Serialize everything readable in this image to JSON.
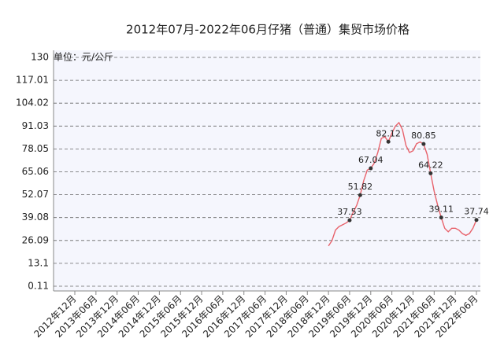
{
  "chart_data": {
    "type": "line",
    "title": "2012年07月-2022年06月仔猪（普通）集贸市场价格",
    "y_unit": "单位：元/公斤",
    "categories": [
      "2012年12月",
      null,
      null,
      null,
      null,
      null,
      "2013年06月",
      null,
      null,
      null,
      null,
      null,
      "2013年12月",
      null,
      null,
      null,
      null,
      null,
      "2014年06月",
      null,
      null,
      null,
      null,
      null,
      "2014年12月",
      null,
      null,
      null,
      null,
      null,
      "2015年06月",
      null,
      null,
      null,
      null,
      null,
      "2015年12月",
      null,
      null,
      null,
      null,
      null,
      "2016年06月",
      null,
      null,
      null,
      null,
      null,
      "2016年12月",
      null,
      null,
      null,
      null,
      null,
      "2017年06月",
      null,
      null,
      null,
      null,
      null,
      "2017年12月",
      null,
      null,
      null,
      null,
      null,
      "2018年06月",
      null,
      null,
      null,
      null,
      null,
      "2018年12月",
      null,
      null,
      null,
      null,
      null,
      "2019年06月",
      null,
      null,
      null,
      null,
      null,
      "2019年12月",
      null,
      null,
      null,
      null,
      null,
      "2020年06月",
      null,
      null,
      null,
      null,
      null,
      "2020年12月",
      null,
      null,
      null,
      null,
      null,
      "2021年06月",
      null,
      null,
      null,
      null,
      null,
      "2021年12月",
      null,
      null,
      null,
      null,
      null,
      "2022年06月"
    ],
    "series": [
      {
        "color": "#e8626b",
        "values": [
          null,
          null,
          null,
          null,
          null,
          null,
          null,
          null,
          null,
          null,
          null,
          null,
          null,
          null,
          null,
          null,
          null,
          null,
          null,
          null,
          null,
          null,
          null,
          null,
          null,
          null,
          null,
          null,
          null,
          null,
          null,
          null,
          null,
          null,
          null,
          null,
          null,
          null,
          null,
          null,
          null,
          null,
          null,
          null,
          null,
          null,
          null,
          null,
          null,
          null,
          null,
          null,
          null,
          null,
          null,
          null,
          null,
          null,
          null,
          null,
          null,
          null,
          null,
          null,
          null,
          null,
          null,
          null,
          null,
          null,
          null,
          null,
          23,
          26,
          32,
          34,
          35,
          36,
          37.53,
          42,
          46,
          51.82,
          60,
          66,
          67.04,
          70,
          76,
          84,
          85,
          82.12,
          87,
          91,
          93,
          89,
          80,
          76,
          77,
          81,
          82,
          80.85,
          75,
          64.22,
          54,
          46,
          39.11,
          33,
          31,
          33,
          33,
          32,
          30,
          29,
          30,
          33,
          37.74
        ]
      },
      {
        "color": "#333333",
        "values": [
          null,
          null,
          null,
          null,
          null,
          null,
          null,
          null,
          null,
          null,
          null,
          null,
          null,
          null,
          null,
          null,
          null,
          null,
          null,
          null,
          null,
          null,
          null,
          null,
          null,
          null,
          null,
          null,
          null,
          null,
          null,
          null,
          null,
          null,
          null,
          null,
          null,
          null,
          null,
          null,
          null,
          null,
          null,
          null,
          null,
          null,
          null,
          null,
          null,
          null,
          null,
          null,
          null,
          null,
          null,
          null,
          null,
          null,
          null,
          null,
          null,
          null,
          null,
          null,
          null,
          null,
          null,
          null,
          null,
          null,
          null,
          null,
          null,
          null,
          null,
          null,
          null,
          null,
          37.53,
          null,
          null,
          51.82,
          null,
          null,
          67.04,
          null,
          null,
          null,
          null,
          82.12,
          null,
          null,
          null,
          null,
          null,
          null,
          null,
          null,
          null,
          80.85,
          null,
          64.22,
          null,
          null,
          39.11,
          null,
          null,
          null,
          null,
          null,
          null,
          null,
          null,
          null,
          37.74
        ]
      }
    ],
    "ylim": [
      0.11,
      130
    ],
    "yticks": [
      0.11,
      13.1,
      26.09,
      39.08,
      52.07,
      65.06,
      78.05,
      91.03,
      104.02,
      117.01,
      130
    ],
    "grid": true
  }
}
